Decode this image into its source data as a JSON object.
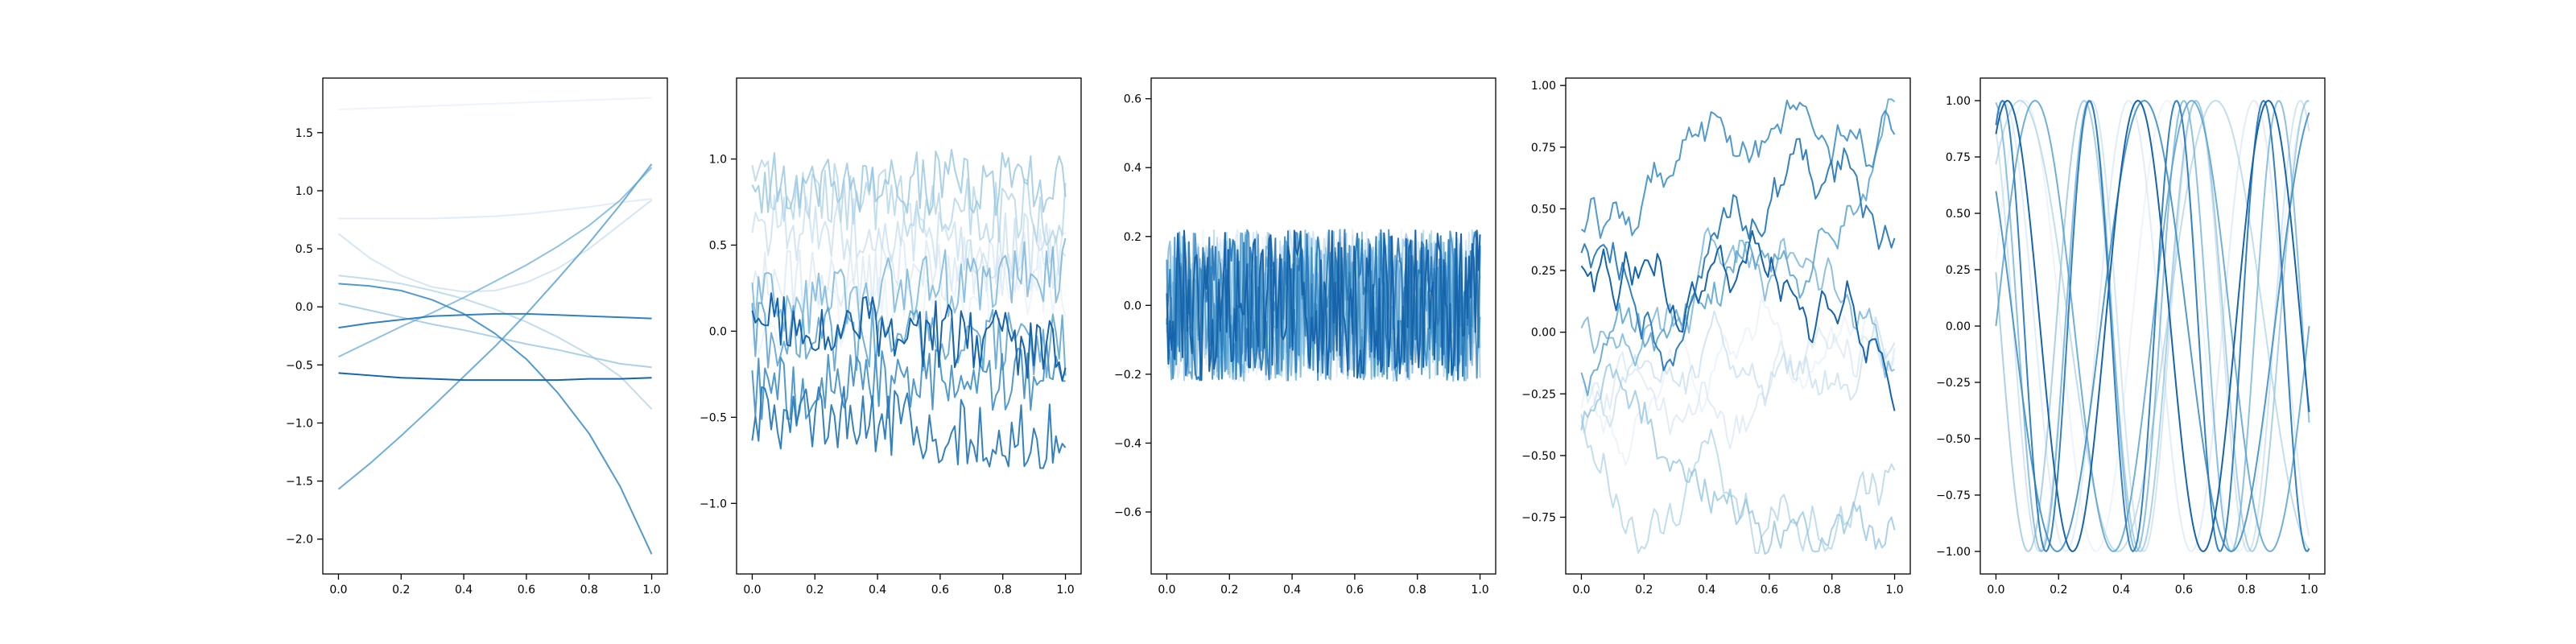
{
  "chart_data": [
    {
      "type": "line",
      "title": "",
      "xlabel": "",
      "ylabel": "",
      "xlim": [
        -0.05,
        1.05
      ],
      "ylim": [
        -2.3,
        1.97
      ],
      "xticks": [
        "0.0",
        "0.2",
        "0.4",
        "0.6",
        "0.8",
        "1.0"
      ],
      "yticks": [
        "−2.0",
        "−1.5",
        "−1.0",
        "−0.5",
        "0.0",
        "0.5",
        "1.0",
        "1.5"
      ],
      "ytick_values": [
        -2.0,
        -1.5,
        -1.0,
        -0.5,
        0.0,
        0.5,
        1.0,
        1.5
      ],
      "x": [
        0.0,
        0.1,
        0.2,
        0.3,
        0.4,
        0.5,
        0.6,
        0.7,
        0.8,
        0.9,
        1.0
      ],
      "series": [
        {
          "values": [
            1.7,
            1.71,
            1.72,
            1.73,
            1.74,
            1.75,
            1.76,
            1.77,
            1.78,
            1.79,
            1.8
          ]
        },
        {
          "values": [
            0.76,
            0.76,
            0.76,
            0.76,
            0.77,
            0.78,
            0.8,
            0.83,
            0.86,
            0.9,
            0.93
          ]
        },
        {
          "values": [
            0.63,
            0.42,
            0.27,
            0.17,
            0.13,
            0.14,
            0.21,
            0.33,
            0.5,
            0.71,
            0.92
          ]
        },
        {
          "values": [
            0.27,
            0.24,
            0.2,
            0.14,
            0.07,
            -0.02,
            -0.13,
            -0.26,
            -0.41,
            -0.6,
            -0.88
          ]
        },
        {
          "values": [
            0.03,
            -0.03,
            -0.09,
            -0.15,
            -0.2,
            -0.26,
            -0.32,
            -0.37,
            -0.43,
            -0.49,
            -0.52
          ]
        },
        {
          "values": [
            -0.43,
            -0.3,
            -0.17,
            -0.05,
            0.08,
            0.22,
            0.36,
            0.52,
            0.7,
            0.92,
            1.2
          ]
        },
        {
          "values": [
            -1.57,
            -1.35,
            -1.11,
            -0.86,
            -0.6,
            -0.34,
            -0.06,
            0.24,
            0.55,
            0.88,
            1.23
          ]
        },
        {
          "values": [
            0.2,
            0.18,
            0.14,
            0.06,
            -0.06,
            -0.23,
            -0.45,
            -0.74,
            -1.09,
            -1.55,
            -2.13
          ]
        },
        {
          "values": [
            -0.18,
            -0.14,
            -0.11,
            -0.08,
            -0.07,
            -0.06,
            -0.06,
            -0.07,
            -0.08,
            -0.09,
            -0.1
          ]
        },
        {
          "values": [
            -0.57,
            -0.59,
            -0.61,
            -0.62,
            -0.63,
            -0.63,
            -0.63,
            -0.63,
            -0.62,
            -0.62,
            -0.61
          ]
        }
      ]
    },
    {
      "type": "line",
      "title": "",
      "xlabel": "",
      "ylabel": "",
      "xlim": [
        -0.05,
        1.05
      ],
      "ylim": [
        -1.41,
        1.47
      ],
      "xticks": [
        "0.0",
        "0.2",
        "0.4",
        "0.6",
        "0.8",
        "1.0"
      ],
      "yticks": [
        "−1.0",
        "−0.5",
        "0.0",
        "0.5",
        "1.0"
      ],
      "ytick_values": [
        -1.0,
        -0.5,
        0.0,
        0.5,
        1.0
      ],
      "series_count": 10,
      "points_per_series": 100,
      "series_levels": [
        0.15,
        0.35,
        0.55,
        0.75,
        0.85,
        0.25,
        -0.05,
        -0.3,
        -0.55,
        0.0
      ],
      "noise_amplitude": 0.2
    },
    {
      "type": "line",
      "title": "",
      "xlabel": "",
      "ylabel": "",
      "xlim": [
        -0.05,
        1.05
      ],
      "ylim": [
        -0.78,
        0.66
      ],
      "xticks": [
        "0.0",
        "0.2",
        "0.4",
        "0.6",
        "0.8",
        "1.0"
      ],
      "yticks": [
        "−0.6",
        "−0.4",
        "−0.2",
        "0.0",
        "0.2",
        "0.4",
        "0.6"
      ],
      "ytick_values": [
        -0.6,
        -0.4,
        -0.2,
        0.0,
        0.2,
        0.4,
        0.6
      ],
      "series_count": 10,
      "points_per_series": 200,
      "noise_amplitude": 0.22
    },
    {
      "type": "line",
      "title": "",
      "xlabel": "",
      "ylabel": "",
      "xlim": [
        -0.05,
        1.05
      ],
      "ylim": [
        -0.98,
        1.03
      ],
      "xticks": [
        "0.0",
        "0.2",
        "0.4",
        "0.6",
        "0.8",
        "1.0"
      ],
      "yticks": [
        "−0.75",
        "−0.50",
        "−0.25",
        "0.00",
        "0.25",
        "0.50",
        "0.75",
        "1.00"
      ],
      "ytick_values": [
        -0.75,
        -0.5,
        -0.25,
        0.0,
        0.25,
        0.5,
        0.75,
        1.0
      ],
      "series_count": 10,
      "points_per_series": 100,
      "random_walk_step": 0.09
    },
    {
      "type": "line",
      "title": "",
      "xlabel": "",
      "ylabel": "",
      "xlim": [
        -0.05,
        1.05
      ],
      "ylim": [
        -1.1,
        1.1
      ],
      "xticks": [
        "0.0",
        "0.2",
        "0.4",
        "0.6",
        "0.8",
        "1.0"
      ],
      "yticks": [
        "−1.00",
        "−0.75",
        "−0.50",
        "−0.25",
        "0.00",
        "0.25",
        "0.50",
        "0.75",
        "1.00"
      ],
      "ytick_values": [
        -1.0,
        -0.75,
        -0.5,
        -0.25,
        0.0,
        0.25,
        0.5,
        0.75,
        1.0
      ],
      "function": "sin",
      "series_count": 10,
      "frequency_cycles": [
        2.2,
        2.5,
        3.0,
        1.6,
        2.8,
        3.3,
        2.0,
        1.8,
        3.6,
        2.4
      ],
      "phases": [
        0.3,
        1.2,
        2.1,
        0.8,
        2.9,
        1.7,
        0.0,
        2.5,
        1.1,
        1.02
      ]
    }
  ]
}
